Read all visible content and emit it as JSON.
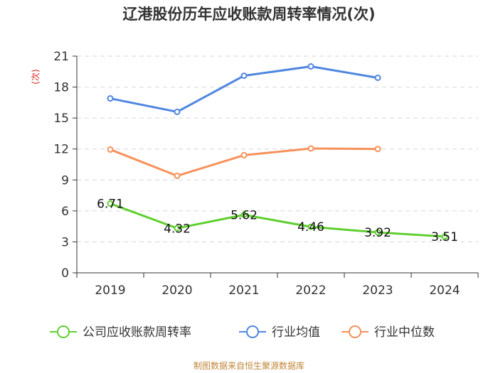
{
  "title": "辽港股份历年应收账款周转率情况(次)",
  "footer": "制图数据来自恒生聚源数据库",
  "chart_data": {
    "type": "line",
    "ylabel": "(次)",
    "ylim": [
      0,
      21
    ],
    "yticks": [
      0,
      3,
      6,
      9,
      12,
      15,
      18,
      21
    ],
    "categories": [
      "2019",
      "2020",
      "2021",
      "2022",
      "2023",
      "2024"
    ],
    "series": [
      {
        "name": "公司应收账款周转率",
        "color": "#5fcf2f",
        "values": [
          6.71,
          4.32,
          5.62,
          4.46,
          3.92,
          3.51
        ],
        "labels": [
          "6.71",
          "4.32",
          "5.62",
          "4.46",
          "3.92",
          "3.51"
        ]
      },
      {
        "name": "行业均值",
        "color": "#4f86e0",
        "values": [
          16.9,
          15.6,
          19.1,
          20.0,
          18.9,
          null
        ]
      },
      {
        "name": "行业中位数",
        "color": "#f7915a",
        "values": [
          11.95,
          9.4,
          11.4,
          12.05,
          12.0,
          null
        ]
      }
    ]
  }
}
